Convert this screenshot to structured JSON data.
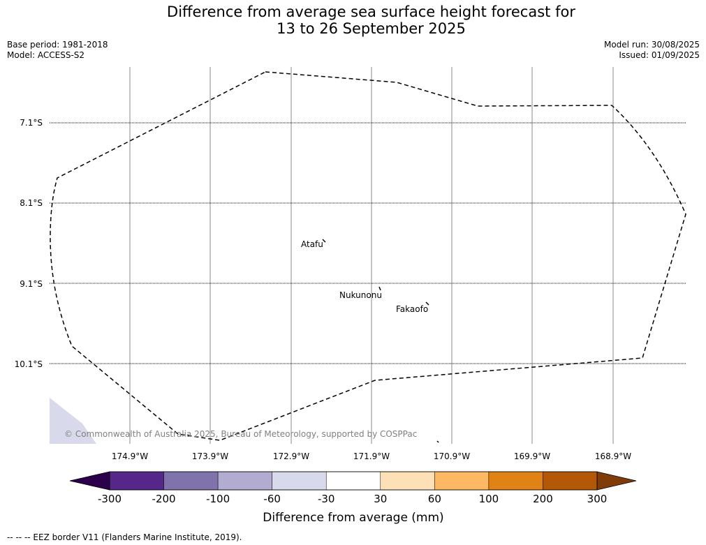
{
  "title": {
    "line1": "Difference from average sea surface height forecast for",
    "line2": "13 to 26 September 2025"
  },
  "meta": {
    "base_period": "Base period: 1981-2018",
    "model": "Model: ACCESS-S2",
    "model_run": "Model run: 30/08/2025",
    "issued": "Issued: 01/09/2025"
  },
  "map": {
    "lat_labels": [
      "7.1°S",
      "8.1°S",
      "9.1°S",
      "10.1°S"
    ],
    "lon_labels": [
      "174.9°W",
      "173.9°W",
      "172.9°W",
      "171.9°W",
      "170.9°W",
      "169.9°W",
      "168.9°W"
    ],
    "places": [
      "Atafu",
      "Nukunonu",
      "Fakaofo"
    ],
    "copyright": "© Commonwealth of Australia 2025, Bureau of Meteorology, supported by COSPPac",
    "land_color": "#d8d9eb"
  },
  "colorbar": {
    "tick_labels": [
      "-300",
      "-200",
      "-100",
      "-60",
      "-30",
      "30",
      "60",
      "100",
      "200",
      "300"
    ],
    "colors": [
      "#2d004b",
      "#542788",
      "#8073ac",
      "#b2abd2",
      "#d8daeb",
      "#ffffff",
      "#fee0b6",
      "#fdb863",
      "#e08214",
      "#b35806",
      "#7f3b08"
    ],
    "label": "Difference from average (mm)"
  },
  "footnote": "--  --  -- EEZ border V11 (Flanders Marine Institute, 2019)."
}
